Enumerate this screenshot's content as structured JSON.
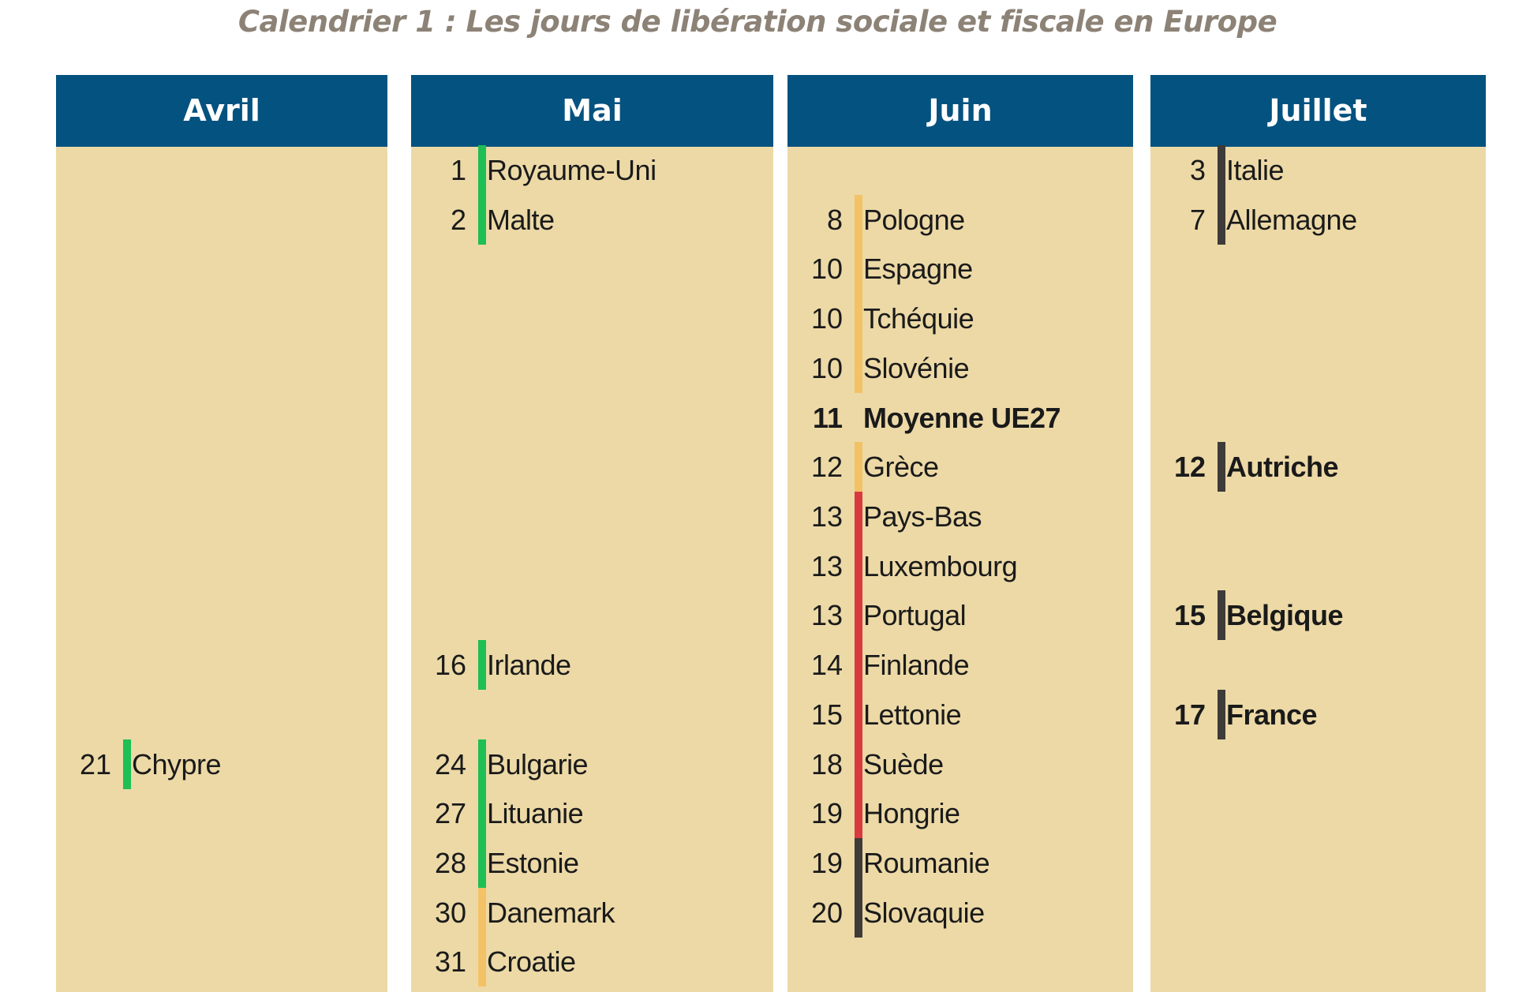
{
  "title": "Calendrier 1 : Les jours de libération sociale et fiscale en Europe",
  "colors": {
    "header": "#04527f",
    "body": "#ecd9a6",
    "green": "#1ebf55",
    "orange": "#f4c266",
    "red": "#d93a40",
    "dark": "#3e3b38"
  },
  "columns": [
    {
      "month": "Avril",
      "items": [
        {
          "day": "21",
          "country": "Chypre",
          "color": "#1ebf55"
        }
      ]
    },
    {
      "month": "Mai",
      "items": [
        {
          "day": "1",
          "country": "Royaume-Uni",
          "color": "#1ebf55"
        },
        {
          "day": "2",
          "country": "Malte",
          "color": "#1ebf55"
        },
        {
          "day": "16",
          "country": "Irlande",
          "color": "#1ebf55"
        },
        {
          "day": "24",
          "country": "Bulgarie",
          "color": "#1ebf55"
        },
        {
          "day": "27",
          "country": "Lituanie",
          "color": "#1ebf55"
        },
        {
          "day": "28",
          "country": "Estonie",
          "color": "#1ebf55"
        },
        {
          "day": "30",
          "country": "Danemark",
          "color": "#f4c266"
        },
        {
          "day": "31",
          "country": "Croatie",
          "color": "#f4c266"
        }
      ]
    },
    {
      "month": "Juin",
      "items": [
        {
          "day": "8",
          "country": "Pologne",
          "color": "#f4c266"
        },
        {
          "day": "10",
          "country": "Espagne",
          "color": "#f4c266"
        },
        {
          "day": "10",
          "country": "Tchéquie",
          "color": "#f4c266"
        },
        {
          "day": "10",
          "country": "Slovénie",
          "color": "#f4c266"
        },
        {
          "day": "11",
          "country": "Moyenne UE27",
          "color": null,
          "bold": true
        },
        {
          "day": "12",
          "country": "Grèce",
          "color": "#f4c266"
        },
        {
          "day": "13",
          "country": "Pays-Bas",
          "color": "#d93a40"
        },
        {
          "day": "13",
          "country": "Luxembourg",
          "color": "#d93a40"
        },
        {
          "day": "13",
          "country": "Portugal",
          "color": "#d93a40"
        },
        {
          "day": "14",
          "country": "Finlande",
          "color": "#d93a40"
        },
        {
          "day": "15",
          "country": "Lettonie",
          "color": "#d93a40"
        },
        {
          "day": "18",
          "country": "Suède",
          "color": "#d93a40"
        },
        {
          "day": "19",
          "country": "Hongrie",
          "color": "#d93a40"
        },
        {
          "day": "19",
          "country": "Roumanie",
          "color": "#3e3b38"
        },
        {
          "day": "20",
          "country": "Slovaquie",
          "color": "#3e3b38"
        }
      ]
    },
    {
      "month": "Juillet",
      "items": [
        {
          "day": "3",
          "country": "Italie",
          "color": "#3e3b38"
        },
        {
          "day": "7",
          "country": "Allemagne",
          "color": "#3e3b38"
        },
        {
          "day": "12",
          "country": "Autriche",
          "color": "#3e3b38",
          "bold": true
        },
        {
          "day": "15",
          "country": "Belgique",
          "color": "#3e3b38",
          "bold": true
        },
        {
          "day": "17",
          "country": "France",
          "color": "#3e3b38",
          "bold": true
        }
      ]
    }
  ]
}
